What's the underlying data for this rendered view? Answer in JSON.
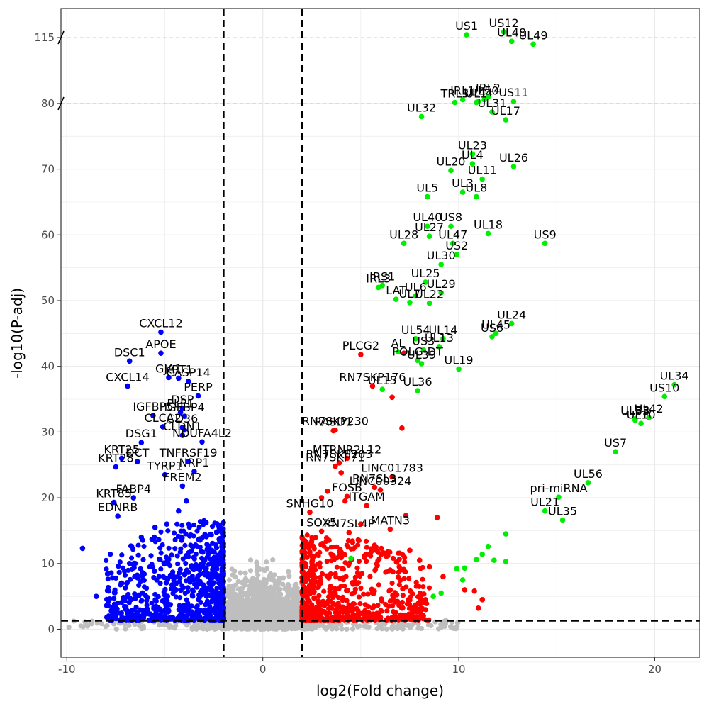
{
  "chart_data": {
    "type": "scatter",
    "title": "",
    "xlabel": "log2(Fold change)",
    "ylabel": "-log10(P-adj)",
    "xlim": [
      -10.3,
      22.3
    ],
    "x_ticks": [
      -10,
      0,
      10,
      20
    ],
    "y_ticks": [
      {
        "label": "0",
        "value": 0
      },
      {
        "label": "10",
        "value": 10
      },
      {
        "label": "20",
        "value": 20
      },
      {
        "label": "30",
        "value": 30
      },
      {
        "label": "40",
        "value": 40
      },
      {
        "label": "50",
        "value": 50
      },
      {
        "label": "60",
        "value": 60
      },
      {
        "label": "70",
        "value": 70
      },
      {
        "label": "80",
        "value": 80
      },
      {
        "label": "115",
        "value": 115
      }
    ],
    "y_axis_break": true,
    "thresholds": {
      "log2fc": [
        -2,
        2
      ],
      "neg_log10_padj": 1.3
    },
    "grid": true,
    "legend": "none",
    "colors": {
      "down": "#0000FF",
      "up": "#FF0000",
      "viral": "#00EE00",
      "ns": "#BEBEBE"
    },
    "series": [
      {
        "color": "#00EE00",
        "points": [
          {
            "label": "US12",
            "x": 12.3,
            "y": 118.0
          },
          {
            "label": "US1",
            "x": 10.4,
            "y": 116.5
          },
          {
            "label": "UL48",
            "x": 12.7,
            "y": 113.0
          },
          {
            "label": "UL49",
            "x": 13.8,
            "y": 111.5
          },
          {
            "label": "IRL2",
            "x": 11.5,
            "y": 83.5
          },
          {
            "label": "IRL1",
            "x": 10.2,
            "y": 82.0
          },
          {
            "label": "UL50",
            "x": 11.3,
            "y": 82.0
          },
          {
            "label": "TRL3",
            "x": 9.8,
            "y": 80.5
          },
          {
            "label": "UL44",
            "x": 11.0,
            "y": 81.0
          },
          {
            "label": "US11",
            "x": 12.8,
            "y": 81.0
          },
          {
            "label": "UL1",
            "x": 10.9,
            "y": 80.5
          },
          {
            "label": "UL31",
            "x": 11.7,
            "y": 78.7
          },
          {
            "label": "UL17",
            "x": 12.4,
            "y": 77.5
          },
          {
            "label": "UL32",
            "x": 8.1,
            "y": 78.0
          },
          {
            "label": "UL23",
            "x": 10.7,
            "y": 72.3
          },
          {
            "label": "UL26",
            "x": 12.8,
            "y": 70.4
          },
          {
            "label": "UL20",
            "x": 9.6,
            "y": 69.8
          },
          {
            "label": "UL4",
            "x": 10.7,
            "y": 70.8
          },
          {
            "label": "UL11",
            "x": 11.2,
            "y": 68.5
          },
          {
            "label": "UL3",
            "x": 10.2,
            "y": 66.5
          },
          {
            "label": "UL5",
            "x": 8.4,
            "y": 65.8
          },
          {
            "label": "UL8",
            "x": 10.9,
            "y": 65.8
          },
          {
            "label": "UL40",
            "x": 8.4,
            "y": 61.3
          },
          {
            "label": "US8",
            "x": 9.6,
            "y": 61.3
          },
          {
            "label": "UL18",
            "x": 11.5,
            "y": 60.2
          },
          {
            "label": "US9",
            "x": 14.4,
            "y": 58.7
          },
          {
            "label": "UL28",
            "x": 7.2,
            "y": 58.7
          },
          {
            "label": "UL27",
            "x": 8.5,
            "y": 59.8
          },
          {
            "label": "UL47",
            "x": 9.7,
            "y": 58.7
          },
          {
            "label": "US2",
            "x": 9.9,
            "y": 57.0
          },
          {
            "label": "UL30",
            "x": 9.1,
            "y": 55.5
          },
          {
            "label": "UL25",
            "x": 8.3,
            "y": 52.8
          },
          {
            "label": "IRL3",
            "x": 5.9,
            "y": 52.0
          },
          {
            "label": "IRS1",
            "x": 6.1,
            "y": 52.3
          },
          {
            "label": "UL29",
            "x": 9.1,
            "y": 51.2
          },
          {
            "label": "LAT",
            "x": 6.8,
            "y": 50.2
          },
          {
            "label": "UL6",
            "x": 7.8,
            "y": 50.7
          },
          {
            "label": "UL7",
            "x": 7.5,
            "y": 49.7
          },
          {
            "label": "UL22",
            "x": 8.5,
            "y": 49.6
          },
          {
            "label": "UL24",
            "x": 12.7,
            "y": 46.5
          },
          {
            "label": "UL54",
            "x": 7.8,
            "y": 44.2
          },
          {
            "label": "UL14",
            "x": 9.2,
            "y": 44.2
          },
          {
            "label": "UL45",
            "x": 11.9,
            "y": 45.0
          },
          {
            "label": "US6",
            "x": 11.7,
            "y": 44.5
          },
          {
            "label": "AL",
            "x": 6.9,
            "y": 42.2
          },
          {
            "label": "UL13",
            "x": 9.0,
            "y": 43.0
          },
          {
            "label": "US3",
            "x": 8.2,
            "y": 42.5
          },
          {
            "label": "POLG-DT",
            "x": 7.9,
            "y": 40.9
          },
          {
            "label": "UL19",
            "x": 10.0,
            "y": 39.6
          },
          {
            "label": "UL39",
            "x": 8.1,
            "y": 40.4
          },
          {
            "label": "UL15",
            "x": 6.1,
            "y": 36.5
          },
          {
            "label": "UL36",
            "x": 7.9,
            "y": 36.3
          },
          {
            "label": "UL34",
            "x": 21.0,
            "y": 37.2
          },
          {
            "label": "US10",
            "x": 20.5,
            "y": 35.4
          },
          {
            "label": "UL42",
            "x": 19.7,
            "y": 32.2
          },
          {
            "label": "UL33",
            "x": 19.0,
            "y": 32.0
          },
          {
            "label": "UL53",
            "x": 19.0,
            "y": 31.8
          },
          {
            "label": "UL10",
            "x": 19.3,
            "y": 31.3
          },
          {
            "label": "US7",
            "x": 18.0,
            "y": 27.0
          },
          {
            "label": "UL56",
            "x": 16.6,
            "y": 22.3
          },
          {
            "label": "pri-miRNA",
            "x": 15.1,
            "y": 20.1
          },
          {
            "label": "UL21",
            "x": 14.4,
            "y": 18.0
          },
          {
            "label": "UL35",
            "x": 15.3,
            "y": 16.6
          },
          {
            "label": "",
            "x": 12.4,
            "y": 14.5
          },
          {
            "label": "",
            "x": 11.5,
            "y": 12.6
          },
          {
            "label": "",
            "x": 11.2,
            "y": 11.4
          },
          {
            "label": "",
            "x": 11.8,
            "y": 10.5
          },
          {
            "label": "",
            "x": 12.4,
            "y": 10.3
          },
          {
            "label": "",
            "x": 10.9,
            "y": 10.6
          },
          {
            "label": "",
            "x": 4.5,
            "y": 10.8
          },
          {
            "label": "",
            "x": 9.9,
            "y": 9.2
          },
          {
            "label": "",
            "x": 10.2,
            "y": 7.5
          },
          {
            "label": "",
            "x": 8.7,
            "y": 5.0
          },
          {
            "label": "",
            "x": 9.1,
            "y": 5.5
          },
          {
            "label": "",
            "x": 10.3,
            "y": 9.3
          }
        ]
      },
      {
        "color": "#FF0000",
        "points": [
          {
            "label": "PLCG2",
            "x": 5.0,
            "y": 41.8
          },
          {
            "label": "RN7SKP176",
            "x": 5.6,
            "y": 37.0
          },
          {
            "label": "",
            "x": 6.6,
            "y": 35.3
          },
          {
            "label": "",
            "x": 7.2,
            "y": 42.0
          },
          {
            "label": "RN7SKP230",
            "x": 3.7,
            "y": 30.3
          },
          {
            "label": "",
            "x": 7.1,
            "y": 30.6
          },
          {
            "label": "RASD1",
            "x": 3.6,
            "y": 30.2
          },
          {
            "label": "MTRNR2L12",
            "x": 4.3,
            "y": 26.0
          },
          {
            "label": "RN7SKP203",
            "x": 3.9,
            "y": 25.3
          },
          {
            "label": "RN7SKP71",
            "x": 3.7,
            "y": 24.8
          },
          {
            "label": "",
            "x": 4.0,
            "y": 23.8
          },
          {
            "label": "LINC01783",
            "x": 6.6,
            "y": 23.2
          },
          {
            "label": "RN7SL3",
            "x": 5.7,
            "y": 21.6
          },
          {
            "label": "LINC00324",
            "x": 6.0,
            "y": 21.2
          },
          {
            "label": "",
            "x": 3.0,
            "y": 20.0
          },
          {
            "label": "",
            "x": 3.3,
            "y": 21.0
          },
          {
            "label": "",
            "x": 4.2,
            "y": 19.5
          },
          {
            "label": "FOSB",
            "x": 4.3,
            "y": 20.2
          },
          {
            "label": "ITGAM",
            "x": 5.3,
            "y": 18.8
          },
          {
            "label": "SNHG10",
            "x": 2.4,
            "y": 17.8
          },
          {
            "label": "",
            "x": 7.3,
            "y": 17.3
          },
          {
            "label": "",
            "x": 8.9,
            "y": 17.0
          },
          {
            "label": "",
            "x": 5.0,
            "y": 16.0
          },
          {
            "label": "SOX5",
            "x": 3.0,
            "y": 14.9
          },
          {
            "label": "RN7SL4P",
            "x": 4.4,
            "y": 14.7
          },
          {
            "label": "MATN3",
            "x": 6.5,
            "y": 15.2
          },
          {
            "label": "",
            "x": 4.9,
            "y": 13.5
          },
          {
            "label": "",
            "x": 3.5,
            "y": 12.5
          },
          {
            "label": "",
            "x": 5.8,
            "y": 12.0
          },
          {
            "label": "",
            "x": 7.5,
            "y": 12.0
          },
          {
            "label": "",
            "x": 8.0,
            "y": 10.5
          },
          {
            "label": "",
            "x": 8.5,
            "y": 9.5
          },
          {
            "label": "",
            "x": 9.2,
            "y": 8.0
          },
          {
            "label": "",
            "x": 6.5,
            "y": 9.0
          },
          {
            "label": "",
            "x": 10.3,
            "y": 6.0
          },
          {
            "label": "",
            "x": 10.8,
            "y": 5.8
          },
          {
            "label": "",
            "x": 11.2,
            "y": 4.5
          },
          {
            "label": "",
            "x": 11.0,
            "y": 3.2
          }
        ]
      },
      {
        "color": "#0000FF",
        "points": [
          {
            "label": "CXCL12",
            "x": -5.2,
            "y": 45.2
          },
          {
            "label": "APOE",
            "x": -5.2,
            "y": 42.0
          },
          {
            "label": "DSC1",
            "x": -6.8,
            "y": 40.8
          },
          {
            "label": "GJA1",
            "x": -4.8,
            "y": 38.3
          },
          {
            "label": "KRT1",
            "x": -4.3,
            "y": 38.2
          },
          {
            "label": "CASP14",
            "x": -3.8,
            "y": 37.7
          },
          {
            "label": "CXCL14",
            "x": -6.9,
            "y": 37.0
          },
          {
            "label": "PERP",
            "x": -3.3,
            "y": 35.5
          },
          {
            "label": "DSP",
            "x": -4.1,
            "y": 33.6
          },
          {
            "label": "IGFBP5",
            "x": -5.6,
            "y": 32.5
          },
          {
            "label": "PLP1",
            "x": -4.2,
            "y": 33.0
          },
          {
            "label": "IGFBP4",
            "x": -4.0,
            "y": 32.4
          },
          {
            "label": "CLCA2",
            "x": -5.1,
            "y": 30.8
          },
          {
            "label": "CD36",
            "x": -4.1,
            "y": 30.7
          },
          {
            "label": "",
            "x": -4.0,
            "y": 30.3
          },
          {
            "label": "DSG1",
            "x": -6.2,
            "y": 28.4
          },
          {
            "label": "CLDN1",
            "x": -4.1,
            "y": 29.5
          },
          {
            "label": "NDUFA4L2",
            "x": -3.1,
            "y": 28.5
          },
          {
            "label": "KRT25",
            "x": -7.2,
            "y": 26.0
          },
          {
            "label": "DCT",
            "x": -6.4,
            "y": 25.5
          },
          {
            "label": "TNFRSF19",
            "x": -3.8,
            "y": 25.5
          },
          {
            "label": "KRT28",
            "x": -7.5,
            "y": 24.7
          },
          {
            "label": "TYRP1",
            "x": -5.0,
            "y": 23.5
          },
          {
            "label": "NRP1",
            "x": -3.5,
            "y": 24.0
          },
          {
            "label": "FREM2",
            "x": -4.1,
            "y": 21.8
          },
          {
            "label": "FABP4",
            "x": -6.6,
            "y": 20.0
          },
          {
            "label": "KRT85",
            "x": -7.6,
            "y": 19.3
          },
          {
            "label": "EDNRB",
            "x": -7.4,
            "y": 17.2
          },
          {
            "label": "",
            "x": -9.2,
            "y": 12.3
          },
          {
            "label": "",
            "x": -8.5,
            "y": 5.0
          },
          {
            "label": "",
            "x": -7.9,
            "y": 8.5
          },
          {
            "label": "",
            "x": -7.2,
            "y": 7.0
          },
          {
            "label": "",
            "x": -6.8,
            "y": 10.0
          },
          {
            "label": "",
            "x": -6.2,
            "y": 14.0
          },
          {
            "label": "",
            "x": -5.5,
            "y": 15.5
          },
          {
            "label": "",
            "x": -4.9,
            "y": 16.0
          },
          {
            "label": "",
            "x": -4.3,
            "y": 18.0
          },
          {
            "label": "",
            "x": -3.9,
            "y": 19.5
          },
          {
            "label": "",
            "x": -3.0,
            "y": 16.5
          },
          {
            "label": "",
            "x": -2.6,
            "y": 12.0
          }
        ]
      }
    ]
  }
}
